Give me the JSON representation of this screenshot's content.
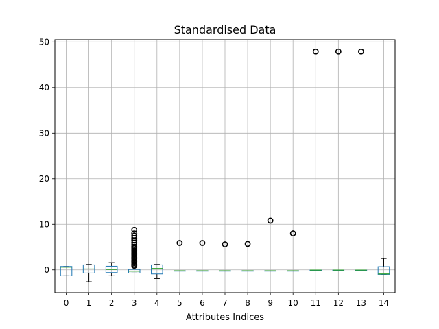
{
  "chart_data": {
    "type": "box",
    "title": "Standardised Data",
    "xlabel": "Attributes Indices",
    "ylabel": "",
    "ylim": [
      -5,
      50.5
    ],
    "yticks": [
      0,
      10,
      20,
      30,
      40,
      50
    ],
    "grid": true,
    "legend": "none",
    "colors": {
      "box": "#1f77b4",
      "median": "#2ca02c",
      "grid": "#b0b0b0",
      "flier": "#000000"
    },
    "categories": [
      "0",
      "1",
      "2",
      "3",
      "4",
      "5",
      "6",
      "7",
      "8",
      "9",
      "10",
      "11",
      "12",
      "13",
      "14"
    ],
    "boxes": [
      {
        "whislo": -1.3,
        "q1": -1.3,
        "med": 0.6,
        "q3": 0.75,
        "whishi": 0.75,
        "fliers": []
      },
      {
        "whislo": -2.6,
        "q1": -0.7,
        "med": 0.2,
        "q3": 1.1,
        "whishi": 1.2,
        "fliers": []
      },
      {
        "whislo": -1.3,
        "q1": -0.6,
        "med": 0.1,
        "q3": 0.8,
        "whishi": 1.6,
        "fliers": []
      },
      {
        "whislo": -0.7,
        "q1": -0.7,
        "med": -0.3,
        "q3": 0.1,
        "whishi": 0.6,
        "fliers": [
          0.9,
          1.2,
          1.5,
          1.8,
          2.1,
          2.4,
          2.7,
          3.0,
          3.3,
          3.6,
          3.9,
          4.2,
          4.5,
          4.8,
          5.1,
          5.5,
          6.0,
          6.5,
          7.0,
          7.5,
          8.0,
          8.8
        ]
      },
      {
        "whislo": -1.9,
        "q1": -0.9,
        "med": 0.3,
        "q3": 1.1,
        "whishi": 1.2,
        "fliers": []
      },
      {
        "whislo": -0.2,
        "q1": -0.2,
        "med": -0.2,
        "q3": -0.2,
        "whishi": -0.2,
        "fliers": [
          5.9
        ]
      },
      {
        "whislo": -0.2,
        "q1": -0.2,
        "med": -0.2,
        "q3": -0.2,
        "whishi": -0.2,
        "fliers": [
          5.9
        ]
      },
      {
        "whislo": -0.2,
        "q1": -0.2,
        "med": -0.2,
        "q3": -0.2,
        "whishi": -0.2,
        "fliers": [
          5.6
        ]
      },
      {
        "whislo": -0.2,
        "q1": -0.2,
        "med": -0.2,
        "q3": -0.2,
        "whishi": -0.2,
        "fliers": [
          5.7
        ]
      },
      {
        "whislo": -0.2,
        "q1": -0.2,
        "med": -0.2,
        "q3": -0.2,
        "whishi": -0.2,
        "fliers": [
          10.8
        ]
      },
      {
        "whislo": -0.2,
        "q1": -0.2,
        "med": -0.2,
        "q3": -0.2,
        "whishi": -0.2,
        "fliers": [
          8.0
        ]
      },
      {
        "whislo": -0.05,
        "q1": -0.05,
        "med": -0.05,
        "q3": -0.05,
        "whishi": -0.05,
        "fliers": [
          47.9
        ]
      },
      {
        "whislo": -0.05,
        "q1": -0.05,
        "med": -0.05,
        "q3": -0.05,
        "whishi": -0.05,
        "fliers": [
          47.9
        ]
      },
      {
        "whislo": -0.05,
        "q1": -0.05,
        "med": -0.05,
        "q3": -0.05,
        "whishi": -0.05,
        "fliers": [
          47.9
        ]
      },
      {
        "whislo": -1.0,
        "q1": -1.0,
        "med": -0.9,
        "q3": 0.7,
        "whishi": 2.5,
        "fliers": []
      }
    ]
  }
}
